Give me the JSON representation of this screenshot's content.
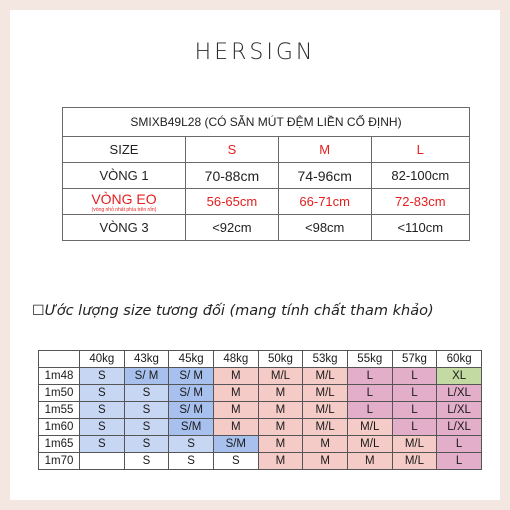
{
  "brand": "HERSIGN",
  "size_table": {
    "title": "SMIXB49L28 (CÓ SẴN MÚT ĐỆM LIỀN CỐ ĐỊNH)",
    "header": [
      "SIZE",
      "S",
      "M",
      "L"
    ],
    "rows": [
      {
        "label": "VÒNG 1",
        "note": "",
        "values": [
          "70-88cm",
          "74-96cm",
          "82-100cm"
        ]
      },
      {
        "label": "VÒNG EO",
        "note": "(vòng nhỏ nhất phía trên rốn)",
        "values": [
          "56-65cm",
          "66-71cm",
          "72-83cm"
        ]
      },
      {
        "label": "VÒNG 3",
        "note": "",
        "values": [
          "<92cm",
          "<98cm",
          "<110cm"
        ]
      }
    ]
  },
  "estimate_heading": "Ước lượng size tương đối (mang tính chất tham khảo)",
  "estimate_icon": "box-glyph",
  "colors": {
    "blue": "#c7d6f2",
    "blue_dark": "#a7c0ee",
    "pink": "#f5cbc8",
    "rose": "#e3aeca",
    "green": "#c3dba2",
    "red": "#e41e1e"
  },
  "grid": {
    "weights": [
      "40kg",
      "43kg",
      "45kg",
      "48kg",
      "50kg",
      "53kg",
      "55kg",
      "57kg",
      "60kg"
    ],
    "rows": [
      {
        "height": "1m48",
        "cells": [
          "S",
          "S/ M",
          "S/ M",
          "M",
          "M/L",
          "M/L",
          "L",
          "L",
          "XL"
        ]
      },
      {
        "height": "1m50",
        "cells": [
          "S",
          "S",
          "S/ M",
          "M",
          "M",
          "M/L",
          "L",
          "L",
          "L/XL"
        ]
      },
      {
        "height": "1m55",
        "cells": [
          "S",
          "S",
          "S/ M",
          "M",
          "M",
          "M/L",
          "L",
          "L",
          "L/XL"
        ]
      },
      {
        "height": "1m60",
        "cells": [
          "S",
          "S",
          "S/M",
          "M",
          "M",
          "M/L",
          "M/L",
          "L",
          "L/XL"
        ]
      },
      {
        "height": "1m65",
        "cells": [
          "S",
          "S",
          "S",
          "S/M",
          "M",
          "M",
          "M/L",
          "M/L",
          "L"
        ]
      },
      {
        "height": "1m70",
        "cells": [
          "",
          "S",
          "S",
          "S",
          "M",
          "M",
          "M",
          "M/L",
          "L"
        ]
      }
    ]
  }
}
